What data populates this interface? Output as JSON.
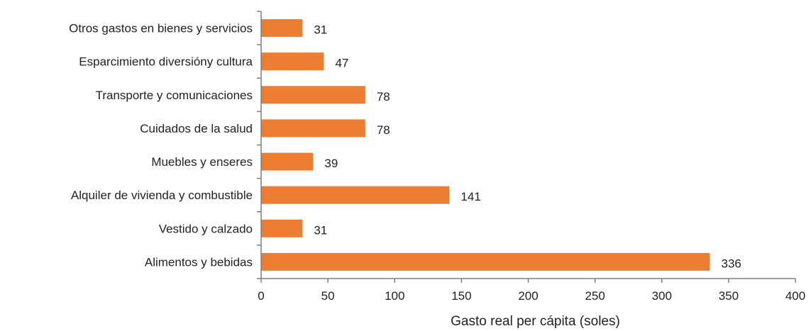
{
  "chart_data": {
    "type": "bar",
    "orientation": "horizontal",
    "title": "",
    "xlabel": "Gasto real per cápita (soles)",
    "ylabel": "",
    "xlim": [
      0,
      400
    ],
    "xticks": [
      0,
      50,
      100,
      150,
      200,
      250,
      300,
      350,
      400
    ],
    "grid": false,
    "legend": "none",
    "bar_color": "#ED7D31",
    "categories": [
      "Otros gastos en bienes y servicios",
      "Esparcimiento diversióny cultura",
      "Transporte y comunicaciones",
      "Cuidados de la salud",
      "Muebles y enseres",
      "Alquiler de vivienda y combustible",
      "Vestido y calzado",
      "Alimentos y bebidas"
    ],
    "values": [
      31,
      47,
      78,
      78,
      39,
      141,
      31,
      336
    ]
  }
}
